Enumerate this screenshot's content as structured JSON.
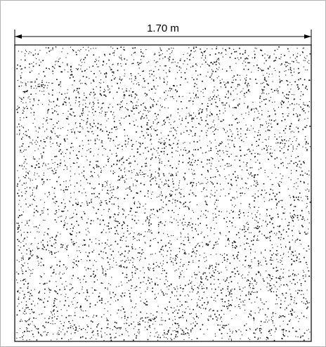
{
  "dimension": {
    "label": "1.70 m"
  },
  "colors": {
    "line": "#000000",
    "stipple": "#000000",
    "frame": "#b3b3b3",
    "background": "#ffffff"
  },
  "fill_pattern": "concrete-stipple"
}
